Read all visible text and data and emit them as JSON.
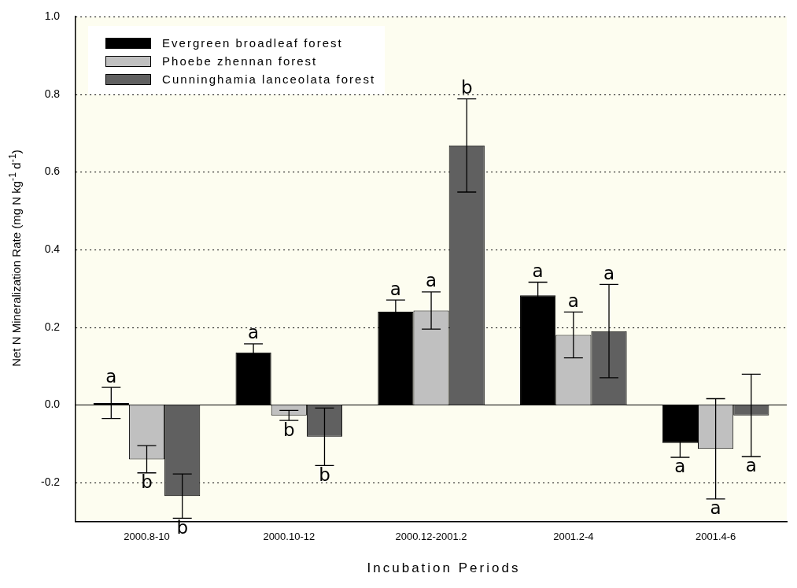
{
  "chart_data": {
    "type": "bar",
    "xlabel": "Incubation Periods",
    "ylabel": "Net N Mineralization Rate (mg N kg$^{-1}$ d$^{-1}$)",
    "categories": [
      "2000.8-10",
      "2000.10-12",
      "2000.12-2001.2",
      "2001.2-4",
      "2001.4-6"
    ],
    "series": [
      {
        "name": "Evergreen broadleaf forest",
        "color": "#000000",
        "values": [
          0.005,
          0.135,
          0.24,
          0.282,
          -0.098
        ],
        "errors": [
          0.04,
          0.022,
          0.03,
          0.034,
          0.037
        ],
        "value_labels": [
          "a",
          "a",
          "a",
          "a",
          "a"
        ]
      },
      {
        "name": "Phoebe zhennan forest",
        "color": "#c0c0c0",
        "values": [
          -0.14,
          -0.027,
          0.243,
          0.18,
          -0.113
        ],
        "errors": [
          0.035,
          0.013,
          0.048,
          0.059,
          0.129
        ],
        "value_labels": [
          "b",
          "b",
          "a",
          "a",
          "a"
        ]
      },
      {
        "name": "Cunninghamia lanceolata forest",
        "color": "#606060",
        "values": [
          -0.235,
          -0.082,
          0.668,
          0.19,
          -0.027
        ],
        "errors": [
          0.057,
          0.074,
          0.12,
          0.12,
          0.106
        ],
        "value_labels": [
          "b",
          "b",
          "b",
          "a",
          "a"
        ]
      }
    ],
    "ylim": [
      -0.3,
      1.0
    ],
    "yticks": [
      {
        "value": -0.2,
        "label": "-0.2"
      },
      {
        "value": 0,
        "label": "0.0"
      },
      {
        "value": 0.2,
        "label": "0.2"
      },
      {
        "value": 0.4,
        "label": "0.4"
      },
      {
        "value": 0.6,
        "label": "0.6"
      },
      {
        "value": 0.8,
        "label": "0.8"
      },
      {
        "value": 1,
        "label": "1.0"
      }
    ],
    "grid": "y",
    "line_style": "dotted",
    "legend": "top left",
    "ref_lines": [
      {
        "axis": "y",
        "value": 0,
        "color": "#000000",
        "line_style": "solid"
      }
    ]
  }
}
